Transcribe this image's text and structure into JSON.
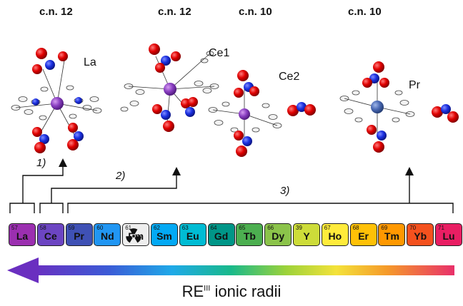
{
  "coordination": [
    "c.n. 12",
    "c.n. 12",
    "c.n. 10",
    "c.n. 10"
  ],
  "structure_labels": [
    "La",
    "Ce1",
    "Ce2",
    "Pr"
  ],
  "steps": [
    "1)",
    "2)",
    "3)"
  ],
  "elements": [
    {
      "num": "57",
      "sym": "La",
      "color": "#9b2fb0"
    },
    {
      "num": "58",
      "sym": "Ce",
      "color": "#6c45c2"
    },
    {
      "num": "59",
      "sym": "Pr",
      "color": "#3f51b5"
    },
    {
      "num": "60",
      "sym": "Nd",
      "color": "#2196f3"
    },
    {
      "num": "61",
      "sym": "Pm",
      "color": "#eeeeee"
    },
    {
      "num": "62",
      "sym": "Sm",
      "color": "#03a9f4"
    },
    {
      "num": "63",
      "sym": "Eu",
      "color": "#00bcd4"
    },
    {
      "num": "64",
      "sym": "Gd",
      "color": "#009688"
    },
    {
      "num": "65",
      "sym": "Tb",
      "color": "#4caf50"
    },
    {
      "num": "66",
      "sym": "Dy",
      "color": "#8bc34a"
    },
    {
      "num": "39",
      "sym": "Y",
      "color": "#cddc39"
    },
    {
      "num": "67",
      "sym": "Ho",
      "color": "#ffeb3b"
    },
    {
      "num": "68",
      "sym": "Er",
      "color": "#ffc107"
    },
    {
      "num": "69",
      "sym": "Tm",
      "color": "#ff9800"
    },
    {
      "num": "70",
      "sym": "Yb",
      "color": "#f4511e"
    },
    {
      "num": "71",
      "sym": "Lu",
      "color": "#e91e63"
    }
  ],
  "radii_label": {
    "prefix": "RE",
    "sup": "III",
    "suffix": " ionic radii"
  }
}
